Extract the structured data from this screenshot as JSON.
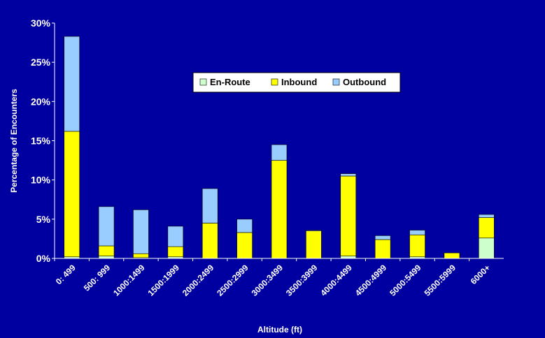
{
  "chart_data": {
    "type": "bar",
    "stacked": true,
    "title": "",
    "xlabel": "Altitude (ft)",
    "ylabel": "Percentage of Encounters",
    "ylim": [
      0,
      30
    ],
    "yticks": [
      "0%",
      "5%",
      "10%",
      "15%",
      "20%",
      "25%",
      "30%"
    ],
    "grid": false,
    "legend_position": "top-center",
    "categories": [
      "0: 499",
      "500: 999",
      "1000:1499",
      "1500:1999",
      "2000:2499",
      "2500:2999",
      "3000:3499",
      "3500:3999",
      "4000:4499",
      "4500:4999",
      "5000:5499",
      "5500:5999",
      "6000+"
    ],
    "series": [
      {
        "name": "En-Route",
        "color": "#CCFFCC",
        "values": [
          0.2,
          0.3,
          0.1,
          0.2,
          0.0,
          0.0,
          0.0,
          0.0,
          0.3,
          0.0,
          0.2,
          0.0,
          2.6
        ]
      },
      {
        "name": "Inbound",
        "color": "#FFFF00",
        "values": [
          16.0,
          1.3,
          0.5,
          1.3,
          4.5,
          3.3,
          12.5,
          3.5,
          10.2,
          2.4,
          2.8,
          0.7,
          2.6
        ]
      },
      {
        "name": "Outbound",
        "color": "#99CCFF",
        "values": [
          12.1,
          5.0,
          5.6,
          2.6,
          4.4,
          1.7,
          2.0,
          0.1,
          0.3,
          0.5,
          0.6,
          0.0,
          0.4
        ]
      }
    ]
  }
}
